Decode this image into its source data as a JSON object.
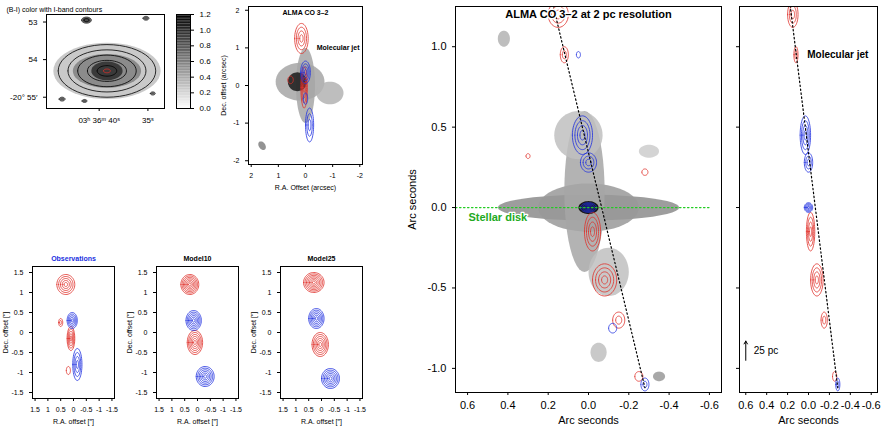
{
  "chart_data": [
    {
      "type": "contour",
      "title": "(B-I) color with I-band contours",
      "xlim": [
        45.4,
        33.3
      ],
      "ylim": [
        55.3,
        52.8
      ],
      "xticks": [
        {
          "value": 40,
          "label": "03ʰ 36ᵐ 40ˢ"
        },
        {
          "value": 35,
          "label": "35ˢ"
        }
      ],
      "yticks": [
        53,
        54,
        {
          "value": 55,
          "label": "-20° 55′"
        }
      ],
      "colorbar": {
        "lim": [
          0,
          1.2
        ],
        "ticks": [
          {
            "value": 0,
            "label": "0.0"
          },
          {
            "value": 0.2,
            "label": "0.2"
          },
          {
            "value": 0.4,
            "label": "0.4"
          },
          {
            "value": 0.6,
            "label": "0.6"
          },
          {
            "value": 0.8,
            "label": "0.8"
          },
          {
            "value": 1,
            "label": "1.0"
          },
          {
            "value": 1.2,
            "label": "1.2"
          }
        ]
      },
      "image": [
        {
          "x": 39.2,
          "y": 54.3,
          "rx": 5.5,
          "ry": 0.75,
          "value": 0.3
        },
        {
          "x": 39.2,
          "y": 54.3,
          "rx": 3.5,
          "ry": 0.45,
          "value": 0.6
        },
        {
          "x": 39.2,
          "y": 54.3,
          "rx": 1.6,
          "ry": 0.25,
          "value": 1.0
        },
        {
          "x": 41.3,
          "y": 52.95,
          "rx": 0.45,
          "ry": 0.07,
          "value": 1.0
        },
        {
          "x": 35.2,
          "y": 52.9,
          "rx": 0.25,
          "ry": 0.04,
          "value": 0.9
        },
        {
          "x": 43.8,
          "y": 55.05,
          "rx": 0.25,
          "ry": 0.04,
          "value": 0.9
        },
        {
          "x": 41.5,
          "y": 55.1,
          "rx": 0.2,
          "ry": 0.03,
          "value": 0.9
        },
        {
          "x": 34.5,
          "y": 54.9,
          "rx": 0.2,
          "ry": 0.03,
          "value": 0.9
        }
      ],
      "series": [
        {
          "color": "#000000",
          "values": [
            {
              "x": 39.2,
              "y": 54.3,
              "rx": 5.0,
              "ry": 0.7,
              "levels": 5
            },
            {
              "x": 41.3,
              "y": 52.95,
              "rx": 0.5,
              "ry": 0.08,
              "levels": 2
            },
            {
              "x": 35.2,
              "y": 52.9,
              "rx": 0.3,
              "ry": 0.05,
              "levels": 1
            },
            {
              "x": 43.8,
              "y": 55.05,
              "rx": 0.3,
              "ry": 0.05,
              "levels": 1
            },
            {
              "x": 41.5,
              "y": 55.1,
              "rx": 0.25,
              "ry": 0.04,
              "levels": 1
            },
            {
              "x": 34.5,
              "y": 54.9,
              "rx": 0.25,
              "ry": 0.04,
              "levels": 1
            }
          ]
        },
        {
          "color": "#e0302a",
          "values": [
            {
              "x": 39.2,
              "y": 54.3,
              "rx": 0.35,
              "ry": 0.05,
              "levels": 1
            }
          ]
        }
      ]
    },
    {
      "type": "contour",
      "title": "ALMA CO 3–2",
      "xlabel": "R.A. Offset (arcsec)",
      "ylabel": "Dec. offset (arcsec)",
      "xlim": [
        2.1,
        -2.1
      ],
      "ylim": [
        -2.1,
        2.1
      ],
      "xticks": [
        2,
        1,
        0,
        -1,
        -2
      ],
      "yticks": [
        -2,
        -1,
        0,
        1,
        2
      ],
      "image": [
        {
          "x": 0.2,
          "y": 0.1,
          "rx": 0.9,
          "ry": 0.5,
          "angle": 0,
          "value": 0.35
        },
        {
          "x": 0,
          "y": 0,
          "rx": 0.35,
          "ry": 1.0,
          "angle": 0,
          "value": 0.35
        },
        {
          "x": 0.3,
          "y": 0.1,
          "rx": 0.35,
          "ry": 0.25,
          "angle": 0,
          "value": 0.9
        },
        {
          "x": -0.9,
          "y": -0.2,
          "rx": 0.5,
          "ry": 0.3,
          "angle": 0,
          "value": 0.3
        },
        {
          "x": 1.6,
          "y": -1.6,
          "rx": 0.15,
          "ry": 0.1,
          "angle": 30,
          "value": 0.5
        }
      ],
      "series": [
        {
          "color": "#e0302a",
          "values": [
            {
              "x": 0.15,
              "y": 1.25,
              "rx": 0.25,
              "ry": 0.4,
              "levels": 4
            },
            {
              "x": 0.05,
              "y": -0.05,
              "rx": 0.12,
              "ry": 0.55,
              "levels": 4
            },
            {
              "x": 0.55,
              "y": 0.15,
              "rx": 0.1,
              "ry": 0.1,
              "levels": 1
            }
          ]
        },
        {
          "color": "#2030e0",
          "values": [
            {
              "x": 0,
              "y": 0.35,
              "rx": 0.18,
              "ry": 0.3,
              "levels": 4
            },
            {
              "x": -0.15,
              "y": -1.05,
              "rx": 0.15,
              "ry": 0.45,
              "levels": 3
            },
            {
              "x": 0,
              "y": -0.35,
              "rx": 0.08,
              "ry": 0.15,
              "levels": 1
            }
          ]
        }
      ],
      "annotations": [
        {
          "text": "Molecular jet",
          "x": -1.2,
          "y": 1.0,
          "color": "#000000"
        }
      ]
    },
    {
      "type": "contour",
      "xlabel": "R.A. offset [″]",
      "ylabel": "Dec. offset [″]",
      "xlim": [
        1.6,
        -1.6
      ],
      "ylim": [
        -1.65,
        1.65
      ],
      "xticks": [
        1.5,
        1,
        0.5,
        0,
        -0.5,
        -1,
        -1.5
      ],
      "yticks": [
        -1.5,
        -1,
        -0.5,
        0,
        0.5,
        1,
        1.5
      ],
      "series": [
        {
          "color": "#e0302a",
          "values": [
            {
              "x": 0.3,
              "y": 1.2,
              "rx": 0.35,
              "ry": 0.25,
              "levels": 5
            },
            {
              "x": 0.1,
              "y": -0.15,
              "rx": 0.15,
              "ry": 0.3,
              "levels": 5
            },
            {
              "x": 0.5,
              "y": 0.25,
              "rx": 0.08,
              "ry": 0.1,
              "levels": 2
            },
            {
              "x": 0.2,
              "y": -0.95,
              "rx": 0.08,
              "ry": 0.1,
              "levels": 1
            }
          ]
        },
        {
          "color": "#2030e0",
          "values": [
            {
              "x": 0.05,
              "y": 0.3,
              "rx": 0.2,
              "ry": 0.2,
              "levels": 5
            },
            {
              "x": -0.15,
              "y": -0.8,
              "rx": 0.18,
              "ry": 0.4,
              "levels": 4
            }
          ]
        }
      ],
      "annotations": [
        {
          "text": "Observations",
          "x": 0,
          "y": 1.85,
          "color": "#2030e0"
        }
      ]
    },
    {
      "type": "contour",
      "xlabel": "R.A. offset [″]",
      "ylabel": "Dec. offset [″]",
      "xlim": [
        1.6,
        -1.6
      ],
      "ylim": [
        -1.65,
        1.65
      ],
      "xticks": [
        1.5,
        1,
        0.5,
        0,
        -0.5,
        -1,
        -1.5
      ],
      "yticks": [
        -1.5,
        -1,
        -0.5,
        0,
        0.5,
        1,
        1.5
      ],
      "series": [
        {
          "color": "#e0302a",
          "values": [
            {
              "x": 0.3,
              "y": 1.2,
              "rx": 0.35,
              "ry": 0.25,
              "levels": 7
            },
            {
              "x": 0.1,
              "y": -0.25,
              "rx": 0.3,
              "ry": 0.3,
              "levels": 6
            }
          ]
        },
        {
          "color": "#2030e0",
          "values": [
            {
              "x": 0.15,
              "y": 0.3,
              "rx": 0.3,
              "ry": 0.25,
              "levels": 6
            },
            {
              "x": -0.3,
              "y": -1.1,
              "rx": 0.35,
              "ry": 0.25,
              "levels": 6
            }
          ]
        }
      ],
      "annotations": [
        {
          "text": "Model10",
          "x": 0,
          "y": 1.85,
          "color": "#000000"
        }
      ]
    },
    {
      "type": "contour",
      "xlabel": "R.A. offset [″]",
      "ylabel": "Dec. offset [″]",
      "xlim": [
        1.6,
        -1.6
      ],
      "ylim": [
        -1.65,
        1.65
      ],
      "xticks": [
        1.5,
        1,
        0.5,
        0,
        -0.5,
        -1,
        -1.5
      ],
      "yticks": [
        -1.5,
        -1,
        -0.5,
        0,
        0.5,
        1,
        1.5
      ],
      "series": [
        {
          "color": "#e0302a",
          "values": [
            {
              "x": 0.3,
              "y": 1.25,
              "rx": 0.4,
              "ry": 0.25,
              "levels": 7
            },
            {
              "x": 0.05,
              "y": -0.3,
              "rx": 0.32,
              "ry": 0.3,
              "levels": 6
            }
          ]
        },
        {
          "color": "#2030e0",
          "values": [
            {
              "x": 0.2,
              "y": 0.35,
              "rx": 0.3,
              "ry": 0.25,
              "levels": 6
            },
            {
              "x": -0.35,
              "y": -1.15,
              "rx": 0.35,
              "ry": 0.25,
              "levels": 6
            }
          ]
        }
      ],
      "annotations": [
        {
          "text": "Model25",
          "x": 0,
          "y": 1.85,
          "color": "#000000"
        }
      ]
    },
    {
      "type": "contour",
      "title": "ALMA CO 3–2 at 2 pc resolution",
      "xlabel": "Arc seconds",
      "ylabel": "Arc seconds",
      "xlim": [
        0.66,
        -0.66
      ],
      "ylim": [
        -1.15,
        1.25
      ],
      "xticks": [
        {
          "value": 0.6,
          "label": "0.6"
        },
        {
          "value": 0.4,
          "label": "0.4"
        },
        {
          "value": 0.2,
          "label": "0.2"
        },
        {
          "value": 0,
          "label": "0.0"
        },
        {
          "value": -0.2,
          "label": "-0.2"
        },
        {
          "value": -0.4,
          "label": "-0.4"
        },
        {
          "value": -0.6,
          "label": "-0.6"
        }
      ],
      "yticks": [
        {
          "value": -1,
          "label": "-1.0"
        },
        {
          "value": -0.5,
          "label": "-0.5"
        },
        {
          "value": 0,
          "label": "0.0"
        },
        {
          "value": 0.5,
          "label": "0.5"
        },
        {
          "value": 1,
          "label": "1.0"
        }
      ],
      "image": [
        {
          "x": 0,
          "y": 0,
          "rx": 0.45,
          "ry": 0.08,
          "angle": 0,
          "value": 0.45
        },
        {
          "x": 0,
          "y": 0,
          "rx": 0.25,
          "ry": 0.15,
          "angle": 0,
          "value": 0.4
        },
        {
          "x": 0.02,
          "y": 0.1,
          "rx": 0.1,
          "ry": 0.5,
          "angle": 0,
          "value": 0.35
        },
        {
          "x": 0.05,
          "y": 0.45,
          "rx": 0.12,
          "ry": 0.15,
          "angle": 0,
          "value": 0.25
        },
        {
          "x": -0.1,
          "y": -0.4,
          "rx": 0.1,
          "ry": 0.15,
          "angle": 0,
          "value": 0.25
        },
        {
          "x": 0.42,
          "y": 1.05,
          "rx": 0.03,
          "ry": 0.05,
          "angle": 0,
          "value": 0.3
        },
        {
          "x": -0.05,
          "y": -0.9,
          "rx": 0.04,
          "ry": 0.06,
          "angle": 0,
          "value": 0.25
        },
        {
          "x": -0.3,
          "y": 0.35,
          "rx": 0.05,
          "ry": 0.04,
          "angle": 0,
          "value": 0.2
        },
        {
          "x": -0.35,
          "y": -1.05,
          "rx": 0.03,
          "ry": 0.03,
          "angle": 0,
          "value": 0.4
        },
        {
          "x": 0,
          "y": 0,
          "rx": 0.05,
          "ry": 0.04,
          "angle": 0,
          "value": 1.0
        }
      ],
      "series": [
        {
          "color": "#e0302a",
          "values": [
            {
              "x": 0.15,
              "y": 1.2,
              "rx": 0.05,
              "ry": 0.08,
              "levels": 3
            },
            {
              "x": 0.12,
              "y": 0.95,
              "rx": 0.02,
              "ry": 0.05,
              "levels": 2
            },
            {
              "x": -0.02,
              "y": -0.15,
              "rx": 0.04,
              "ry": 0.12,
              "levels": 4
            },
            {
              "x": -0.08,
              "y": -0.45,
              "rx": 0.06,
              "ry": 0.1,
              "levels": 4
            },
            {
              "x": -0.15,
              "y": -0.7,
              "rx": 0.03,
              "ry": 0.05,
              "levels": 2
            },
            {
              "x": -0.25,
              "y": -1.05,
              "rx": 0.02,
              "ry": 0.03,
              "levels": 1
            },
            {
              "x": -0.28,
              "y": 0.22,
              "rx": 0.015,
              "ry": 0.02,
              "levels": 1
            },
            {
              "x": 0.3,
              "y": 0.32,
              "rx": 0.01,
              "ry": 0.015,
              "levels": 1
            }
          ]
        },
        {
          "color": "#2030e0",
          "values": [
            {
              "x": 0.03,
              "y": 0.45,
              "rx": 0.05,
              "ry": 0.12,
              "levels": 4
            },
            {
              "x": 0,
              "y": 0.28,
              "rx": 0.04,
              "ry": 0.06,
              "levels": 3
            },
            {
              "x": 0,
              "y": 0,
              "rx": 0.04,
              "ry": 0.03,
              "levels": 5
            },
            {
              "x": -0.28,
              "y": -1.1,
              "rx": 0.02,
              "ry": 0.04,
              "levels": 2
            },
            {
              "x": -0.12,
              "y": -0.75,
              "rx": 0.02,
              "ry": 0.03,
              "levels": 1
            },
            {
              "x": 0.05,
              "y": 0.95,
              "rx": 0.01,
              "ry": 0.02,
              "levels": 1
            }
          ]
        }
      ],
      "lines": [
        {
          "points": [
            [
              0.18,
              1.28
            ],
            [
              -0.28,
              -1.12
            ]
          ],
          "color": "#000000",
          "line_style": "dotted"
        },
        {
          "points": [
            [
              0.66,
              0
            ],
            [
              -0.6,
              0
            ]
          ],
          "color": "#22cc22",
          "line_style": "dotted"
        }
      ],
      "annotations": [
        {
          "text": "Stellar disk",
          "x": 0.45,
          "y": -0.06,
          "color": "#22aa22"
        }
      ]
    },
    {
      "type": "contour",
      "tick_labels": "x",
      "xlabel": "Arc seconds",
      "xlim": [
        0.66,
        -0.66
      ],
      "ylim": [
        -1.15,
        1.25
      ],
      "xticks": [
        {
          "value": 0.6,
          "label": "0.6"
        },
        {
          "value": 0.4,
          "label": "0.4"
        },
        {
          "value": 0.2,
          "label": "0.2"
        },
        {
          "value": 0,
          "label": "0.0"
        },
        {
          "value": -0.2,
          "label": "-0.2"
        },
        {
          "value": -0.4,
          "label": "-0.4"
        },
        {
          "value": -0.6,
          "label": "-0.6"
        }
      ],
      "yticks": [
        -1,
        -0.5,
        0,
        0.5,
        1
      ],
      "series": [
        {
          "color": "#e0302a",
          "values": [
            {
              "x": 0.15,
              "y": 1.2,
              "rx": 0.05,
              "ry": 0.08,
              "levels": 3
            },
            {
              "x": 0.12,
              "y": 0.95,
              "rx": 0.02,
              "ry": 0.05,
              "levels": 2
            },
            {
              "x": -0.02,
              "y": -0.15,
              "rx": 0.04,
              "ry": 0.12,
              "levels": 4
            },
            {
              "x": -0.08,
              "y": -0.45,
              "rx": 0.06,
              "ry": 0.1,
              "levels": 4
            },
            {
              "x": -0.15,
              "y": -0.7,
              "rx": 0.03,
              "ry": 0.05,
              "levels": 2
            },
            {
              "x": -0.25,
              "y": -1.05,
              "rx": 0.02,
              "ry": 0.03,
              "levels": 1
            }
          ]
        },
        {
          "color": "#2030e0",
          "values": [
            {
              "x": 0.03,
              "y": 0.45,
              "rx": 0.05,
              "ry": 0.12,
              "levels": 4
            },
            {
              "x": 0,
              "y": 0.28,
              "rx": 0.04,
              "ry": 0.06,
              "levels": 3
            },
            {
              "x": 0,
              "y": 0,
              "rx": 0.04,
              "ry": 0.03,
              "levels": 5
            },
            {
              "x": -0.28,
              "y": -1.1,
              "rx": 0.02,
              "ry": 0.04,
              "levels": 2
            }
          ]
        }
      ],
      "lines": [
        {
          "points": [
            [
              0.18,
              1.28
            ],
            [
              -0.28,
              -1.12
            ]
          ],
          "color": "#000000",
          "line_style": "dotted"
        }
      ],
      "annotations": [
        {
          "text": "Molecular jet",
          "x": -0.28,
          "y": 0.95,
          "color": "#000000"
        }
      ],
      "scale_bar": {
        "label": "25 pc",
        "x": 0.6,
        "y1": -0.95,
        "y2": -0.83
      }
    }
  ]
}
